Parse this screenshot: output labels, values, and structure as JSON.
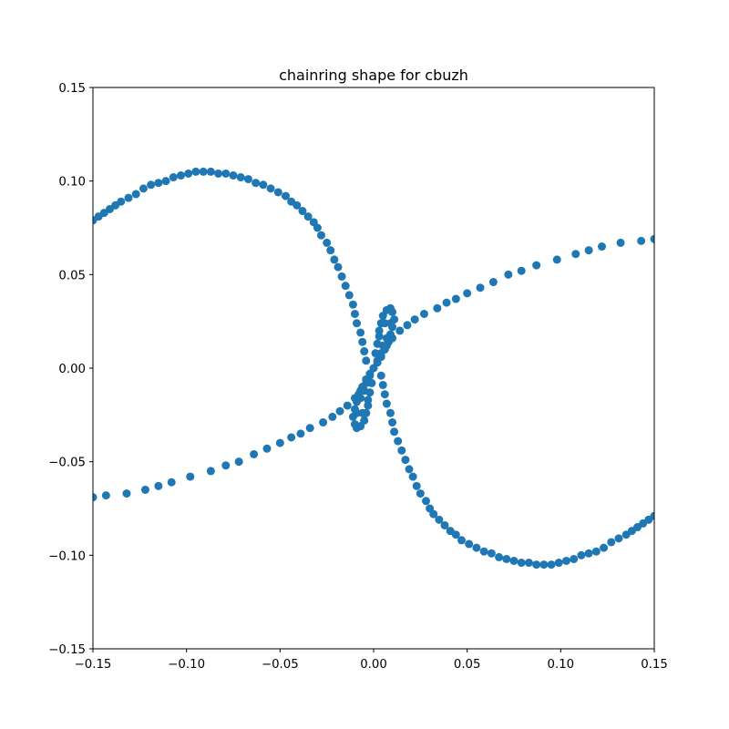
{
  "chart_data": {
    "type": "scatter",
    "title": "chainring shape for cbuzh",
    "xlabel": "",
    "ylabel": "",
    "xlim": [
      -0.15,
      0.15
    ],
    "ylim": [
      -0.15,
      0.15
    ],
    "x_ticks": [
      -0.15,
      -0.1,
      -0.05,
      0.0,
      0.05,
      0.1,
      0.15
    ],
    "x_tick_labels": [
      "−0.15",
      "−0.10",
      "−0.05",
      "0.00",
      "0.05",
      "0.10",
      "0.15"
    ],
    "y_ticks": [
      -0.15,
      -0.1,
      -0.05,
      0.0,
      0.05,
      0.1,
      0.15
    ],
    "y_tick_labels": [
      "−0.15",
      "−0.10",
      "−0.05",
      "0.00",
      "0.05",
      "0.10",
      "0.15"
    ],
    "grid": false,
    "marker_color": "#1f77b4",
    "series": [
      {
        "points": [
          [
            -0.15,
            -0.069
          ],
          [
            -0.143,
            -0.068
          ],
          [
            -0.132,
            -0.067
          ],
          [
            -0.122,
            -0.065
          ],
          [
            -0.115,
            -0.063
          ],
          [
            -0.108,
            -0.061
          ],
          [
            -0.098,
            -0.058
          ],
          [
            -0.087,
            -0.055
          ],
          [
            -0.079,
            -0.052
          ],
          [
            -0.072,
            -0.05
          ],
          [
            -0.064,
            -0.046
          ],
          [
            -0.057,
            -0.043
          ],
          [
            -0.05,
            -0.04
          ],
          [
            -0.044,
            -0.037
          ],
          [
            -0.039,
            -0.035
          ],
          [
            -0.034,
            -0.032
          ],
          [
            -0.027,
            -0.029
          ],
          [
            -0.022,
            -0.026
          ],
          [
            -0.018,
            -0.023
          ],
          [
            -0.014,
            -0.02
          ],
          [
            -0.01,
            -0.016
          ],
          [
            -0.007,
            -0.012
          ],
          [
            -0.004,
            -0.008
          ],
          [
            -0.002,
            -0.004
          ],
          [
            0.0,
            0.0
          ],
          [
            0.002,
            0.004
          ],
          [
            0.004,
            0.008
          ],
          [
            0.007,
            0.012
          ],
          [
            0.01,
            0.016
          ],
          [
            0.014,
            0.02
          ],
          [
            0.018,
            0.023
          ],
          [
            0.022,
            0.026
          ],
          [
            0.027,
            0.029
          ],
          [
            0.034,
            0.032
          ],
          [
            0.039,
            0.035
          ],
          [
            0.044,
            0.037
          ],
          [
            0.05,
            0.04
          ],
          [
            0.057,
            0.043
          ],
          [
            0.064,
            0.046
          ],
          [
            0.072,
            0.05
          ],
          [
            0.079,
            0.052
          ],
          [
            0.087,
            0.055
          ],
          [
            0.098,
            0.058
          ],
          [
            0.108,
            0.061
          ],
          [
            0.115,
            0.063
          ],
          [
            0.122,
            0.065
          ],
          [
            0.132,
            0.067
          ],
          [
            0.143,
            0.068
          ],
          [
            0.15,
            0.069
          ],
          [
            -0.15,
            0.079
          ],
          [
            -0.147,
            0.081
          ],
          [
            -0.144,
            0.083
          ],
          [
            -0.141,
            0.085
          ],
          [
            -0.138,
            0.087
          ],
          [
            -0.135,
            0.089
          ],
          [
            -0.131,
            0.091
          ],
          [
            -0.127,
            0.093
          ],
          [
            -0.123,
            0.096
          ],
          [
            -0.119,
            0.098
          ],
          [
            -0.115,
            0.099
          ],
          [
            -0.111,
            0.1
          ],
          [
            -0.107,
            0.102
          ],
          [
            -0.103,
            0.103
          ],
          [
            -0.099,
            0.104
          ],
          [
            -0.095,
            0.105
          ],
          [
            -0.091,
            0.105
          ],
          [
            -0.087,
            0.105
          ],
          [
            -0.083,
            0.104
          ],
          [
            -0.079,
            0.104
          ],
          [
            -0.075,
            0.103
          ],
          [
            -0.071,
            0.102
          ],
          [
            -0.067,
            0.101
          ],
          [
            -0.063,
            0.099
          ],
          [
            -0.059,
            0.098
          ],
          [
            -0.055,
            0.096
          ],
          [
            -0.051,
            0.094
          ],
          [
            -0.047,
            0.092
          ],
          [
            -0.044,
            0.089
          ],
          [
            -0.041,
            0.087
          ],
          [
            -0.038,
            0.084
          ],
          [
            -0.035,
            0.081
          ],
          [
            -0.032,
            0.078
          ],
          [
            -0.03,
            0.075
          ],
          [
            -0.028,
            0.071
          ],
          [
            -0.025,
            0.067
          ],
          [
            -0.023,
            0.063
          ],
          [
            -0.021,
            0.058
          ],
          [
            -0.019,
            0.054
          ],
          [
            -0.017,
            0.049
          ],
          [
            -0.015,
            0.044
          ],
          [
            -0.013,
            0.039
          ],
          [
            -0.011,
            0.034
          ],
          [
            -0.01,
            0.029
          ],
          [
            -0.009,
            0.024
          ],
          [
            -0.007,
            0.019
          ],
          [
            -0.006,
            0.014
          ],
          [
            -0.005,
            0.009
          ],
          [
            -0.004,
            0.004
          ],
          [
            0.004,
            -0.004
          ],
          [
            0.005,
            -0.009
          ],
          [
            0.006,
            -0.014
          ],
          [
            0.007,
            -0.019
          ],
          [
            0.009,
            -0.024
          ],
          [
            0.01,
            -0.029
          ],
          [
            0.011,
            -0.034
          ],
          [
            0.013,
            -0.039
          ],
          [
            0.015,
            -0.044
          ],
          [
            0.017,
            -0.049
          ],
          [
            0.019,
            -0.054
          ],
          [
            0.021,
            -0.058
          ],
          [
            0.023,
            -0.063
          ],
          [
            0.025,
            -0.067
          ],
          [
            0.028,
            -0.071
          ],
          [
            0.03,
            -0.075
          ],
          [
            0.032,
            -0.078
          ],
          [
            0.035,
            -0.081
          ],
          [
            0.038,
            -0.084
          ],
          [
            0.041,
            -0.087
          ],
          [
            0.044,
            -0.089
          ],
          [
            0.047,
            -0.092
          ],
          [
            0.051,
            -0.094
          ],
          [
            0.055,
            -0.096
          ],
          [
            0.059,
            -0.098
          ],
          [
            0.063,
            -0.099
          ],
          [
            0.067,
            -0.101
          ],
          [
            0.071,
            -0.102
          ],
          [
            0.075,
            -0.103
          ],
          [
            0.079,
            -0.104
          ],
          [
            0.083,
            -0.104
          ],
          [
            0.087,
            -0.105
          ],
          [
            0.091,
            -0.105
          ],
          [
            0.095,
            -0.105
          ],
          [
            0.099,
            -0.104
          ],
          [
            0.103,
            -0.103
          ],
          [
            0.107,
            -0.102
          ],
          [
            0.111,
            -0.1
          ],
          [
            0.115,
            -0.099
          ],
          [
            0.119,
            -0.098
          ],
          [
            0.123,
            -0.096
          ],
          [
            0.127,
            -0.093
          ],
          [
            0.131,
            -0.091
          ],
          [
            0.135,
            -0.089
          ],
          [
            0.138,
            -0.087
          ],
          [
            0.141,
            -0.085
          ],
          [
            0.144,
            -0.083
          ],
          [
            0.147,
            -0.081
          ],
          [
            0.15,
            -0.079
          ],
          [
            0.003,
            0.02
          ],
          [
            0.004,
            0.024
          ],
          [
            0.005,
            0.028
          ],
          [
            0.007,
            0.031
          ],
          [
            0.009,
            0.032
          ],
          [
            0.01,
            0.03
          ],
          [
            0.011,
            0.026
          ],
          [
            0.01,
            0.022
          ],
          [
            0.009,
            0.018
          ],
          [
            0.008,
            0.014
          ],
          [
            0.006,
            0.01
          ],
          [
            0.004,
            0.006
          ],
          [
            0.002,
            0.003
          ],
          [
            0.001,
            0.008
          ],
          [
            0.002,
            0.013
          ],
          [
            0.003,
            0.017
          ],
          [
            0.005,
            0.012
          ],
          [
            0.007,
            0.016
          ],
          [
            0.009,
            0.024
          ],
          [
            0.006,
            0.024
          ],
          [
            -0.003,
            -0.02
          ],
          [
            -0.004,
            -0.024
          ],
          [
            -0.005,
            -0.028
          ],
          [
            -0.007,
            -0.031
          ],
          [
            -0.009,
            -0.032
          ],
          [
            -0.01,
            -0.03
          ],
          [
            -0.011,
            -0.026
          ],
          [
            -0.01,
            -0.022
          ],
          [
            -0.009,
            -0.018
          ],
          [
            -0.008,
            -0.014
          ],
          [
            -0.006,
            -0.01
          ],
          [
            -0.004,
            -0.006
          ],
          [
            -0.002,
            -0.003
          ],
          [
            -0.001,
            -0.008
          ],
          [
            -0.002,
            -0.013
          ],
          [
            -0.003,
            -0.017
          ],
          [
            -0.005,
            -0.012
          ],
          [
            -0.007,
            -0.016
          ],
          [
            -0.009,
            -0.024
          ],
          [
            -0.006,
            -0.024
          ]
        ]
      }
    ]
  }
}
